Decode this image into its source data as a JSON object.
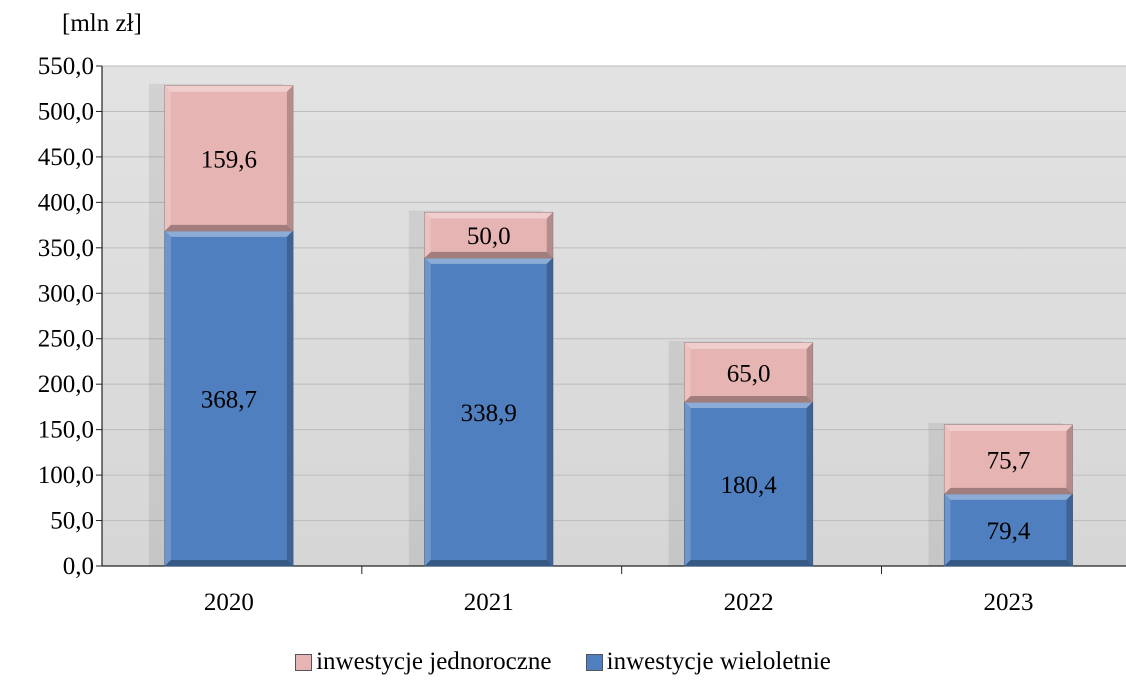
{
  "chart_data": {
    "type": "bar",
    "stacked": true,
    "unit_label": "[mln zł]",
    "categories": [
      "2020",
      "2021",
      "2022",
      "2023"
    ],
    "series": [
      {
        "name": "inwestycje wieloletnie",
        "color": "#4f7fbe",
        "values": [
          368.7,
          338.9,
          180.4,
          79.4
        ],
        "labels": [
          "368,7",
          "338,9",
          "180,4",
          "79,4"
        ]
      },
      {
        "name": "inwestycje jednoroczne",
        "color": "#e6b4b2",
        "values": [
          159.6,
          50.0,
          65.0,
          75.7
        ],
        "labels": [
          "159,6",
          "50,0",
          "65,0",
          "75,7"
        ]
      }
    ],
    "ylim": [
      0,
      550
    ],
    "yticks": [
      0,
      50,
      100,
      150,
      200,
      250,
      300,
      350,
      400,
      450,
      500,
      550
    ],
    "ytick_labels": [
      "0,0",
      "50,0",
      "100,0",
      "150,0",
      "200,0",
      "250,0",
      "300,0",
      "350,0",
      "400,0",
      "450,0",
      "500,0",
      "550,0"
    ],
    "grid": true,
    "legend_position": "bottom",
    "plot_background": "#dedede"
  }
}
